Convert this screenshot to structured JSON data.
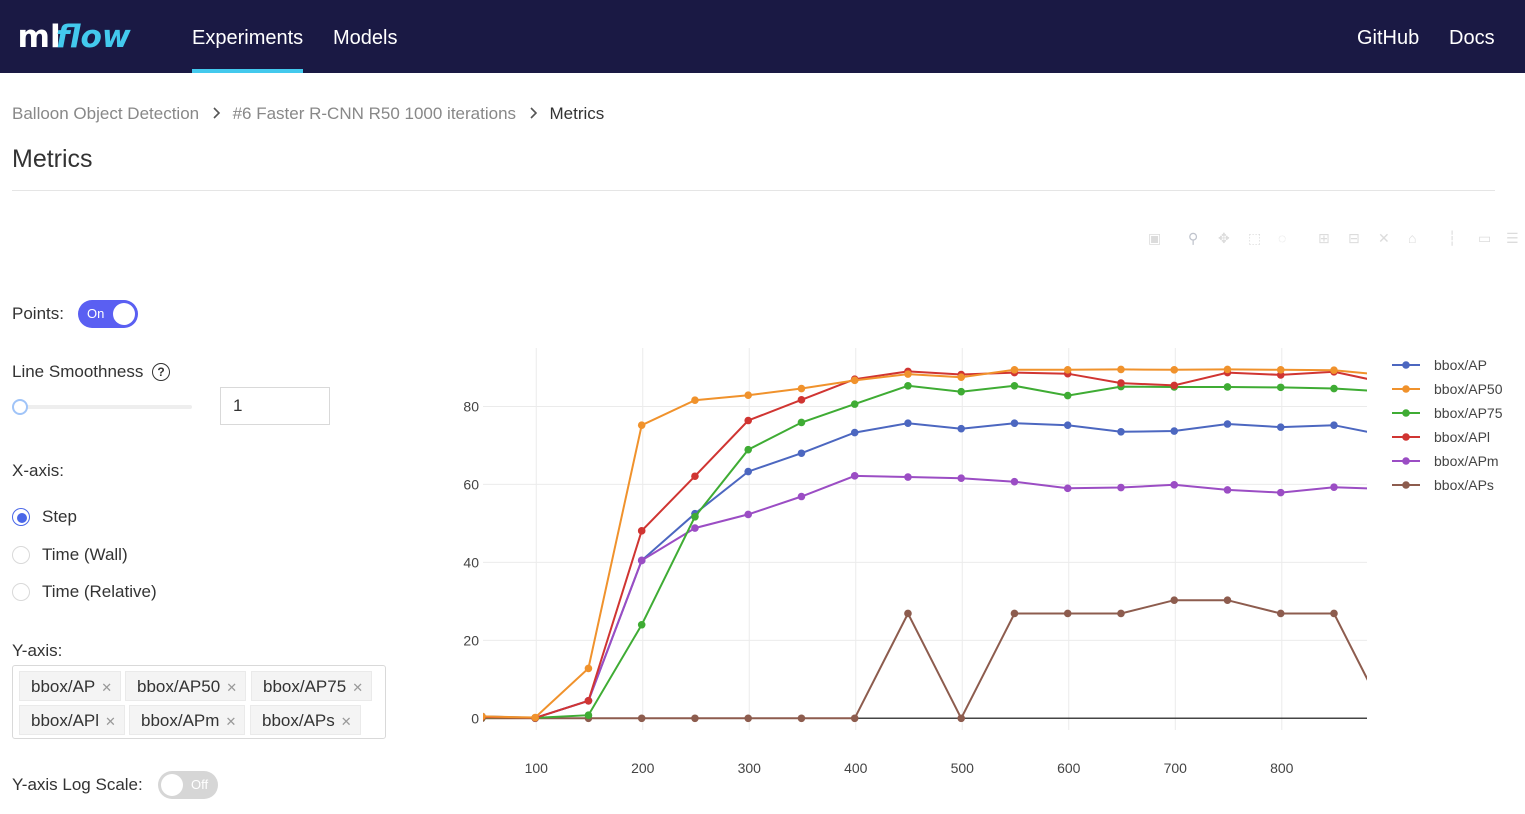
{
  "header": {
    "logo_text": "mlflow",
    "nav": [
      {
        "label": "Experiments",
        "active": true
      },
      {
        "label": "Models",
        "active": false
      }
    ],
    "right_nav": [
      {
        "label": "GitHub"
      },
      {
        "label": "Docs"
      }
    ],
    "colors": {
      "background": "#1a1944",
      "active_underline": "#43c9ed"
    }
  },
  "breadcrumb": {
    "items": [
      "Balloon Object Detection",
      "#6 Faster R-CNN R50 1000 iterations"
    ],
    "current": "Metrics"
  },
  "page_title": "Metrics",
  "controls": {
    "points": {
      "label": "Points:",
      "state": "On",
      "enabled": true
    },
    "smoothness": {
      "label": "Line Smoothness",
      "value": "1",
      "slider_fraction": 0
    },
    "x_axis": {
      "label": "X-axis:",
      "options": [
        {
          "label": "Step",
          "checked": true
        },
        {
          "label": "Time (Wall)",
          "checked": false
        },
        {
          "label": "Time (Relative)",
          "checked": false
        }
      ]
    },
    "y_axis": {
      "label": "Y-axis:",
      "tags": [
        "bbox/AP",
        "bbox/AP50",
        "bbox/AP75",
        "bbox/APl",
        "bbox/APm",
        "bbox/APs"
      ]
    },
    "log_scale": {
      "label": "Y-axis Log Scale:",
      "state": "Off",
      "enabled": false
    },
    "accent_color": "#5a5ff2"
  },
  "chart_data": {
    "type": "line",
    "title": "",
    "xlabel": "",
    "ylabel": "",
    "xlim": [
      50,
      880
    ],
    "ylim": [
      -3,
      95
    ],
    "x_ticks": [
      100,
      200,
      300,
      400,
      500,
      600,
      700,
      800
    ],
    "y_ticks": [
      0,
      20,
      40,
      60,
      80
    ],
    "grid": true,
    "legend_position": "right",
    "markers": true,
    "x": [
      49,
      99,
      149,
      199,
      249,
      299,
      349,
      399,
      449,
      499,
      549,
      599,
      649,
      699,
      749,
      799,
      849,
      899
    ],
    "series": [
      {
        "name": "bbox/AP",
        "color": "#4c67c0",
        "values": [
          0.5,
          0.1,
          4.5,
          40.5,
          52.5,
          63.3,
          68,
          73.3,
          75.7,
          74.3,
          75.7,
          75.2,
          73.5,
          73.7,
          75.5,
          74.7,
          75.2,
          72.5
        ]
      },
      {
        "name": "bbox/AP50",
        "color": "#f0922c",
        "values": [
          0.5,
          0.2,
          12.8,
          75.2,
          81.6,
          82.9,
          84.6,
          86.7,
          88.3,
          87.5,
          89.4,
          89.4,
          89.5,
          89.4,
          89.5,
          89.4,
          89.3,
          88.0
        ]
      },
      {
        "name": "bbox/AP75",
        "color": "#3fac34",
        "values": [
          0.2,
          0.1,
          0.8,
          24,
          51.7,
          68.9,
          75.9,
          80.6,
          85.3,
          83.8,
          85.3,
          82.8,
          85.1,
          85,
          85,
          84.9,
          84.6,
          83.8
        ]
      },
      {
        "name": "bbox/APl",
        "color": "#d03532",
        "values": [
          0.3,
          0.1,
          4.5,
          48.1,
          62.1,
          76.4,
          81.7,
          87.0,
          89.0,
          88.2,
          88.7,
          88.4,
          86.0,
          85.4,
          88.7,
          88.1,
          88.9,
          86.0
        ]
      },
      {
        "name": "bbox/APm",
        "color": "#9b4dc4",
        "values": [
          0.3,
          0.1,
          4.5,
          40.5,
          48.8,
          52.3,
          56.9,
          62.2,
          61.9,
          61.6,
          60.7,
          59.0,
          59.2,
          59.9,
          58.6,
          57.9,
          59.3,
          58.8
        ]
      },
      {
        "name": "bbox/APs",
        "color": "#8d5c4e",
        "values": [
          0,
          0,
          0,
          0,
          0,
          0,
          0,
          0,
          26.9,
          0,
          26.9,
          26.9,
          26.9,
          30.3,
          30.3,
          26.9,
          26.9,
          0
        ]
      }
    ]
  }
}
